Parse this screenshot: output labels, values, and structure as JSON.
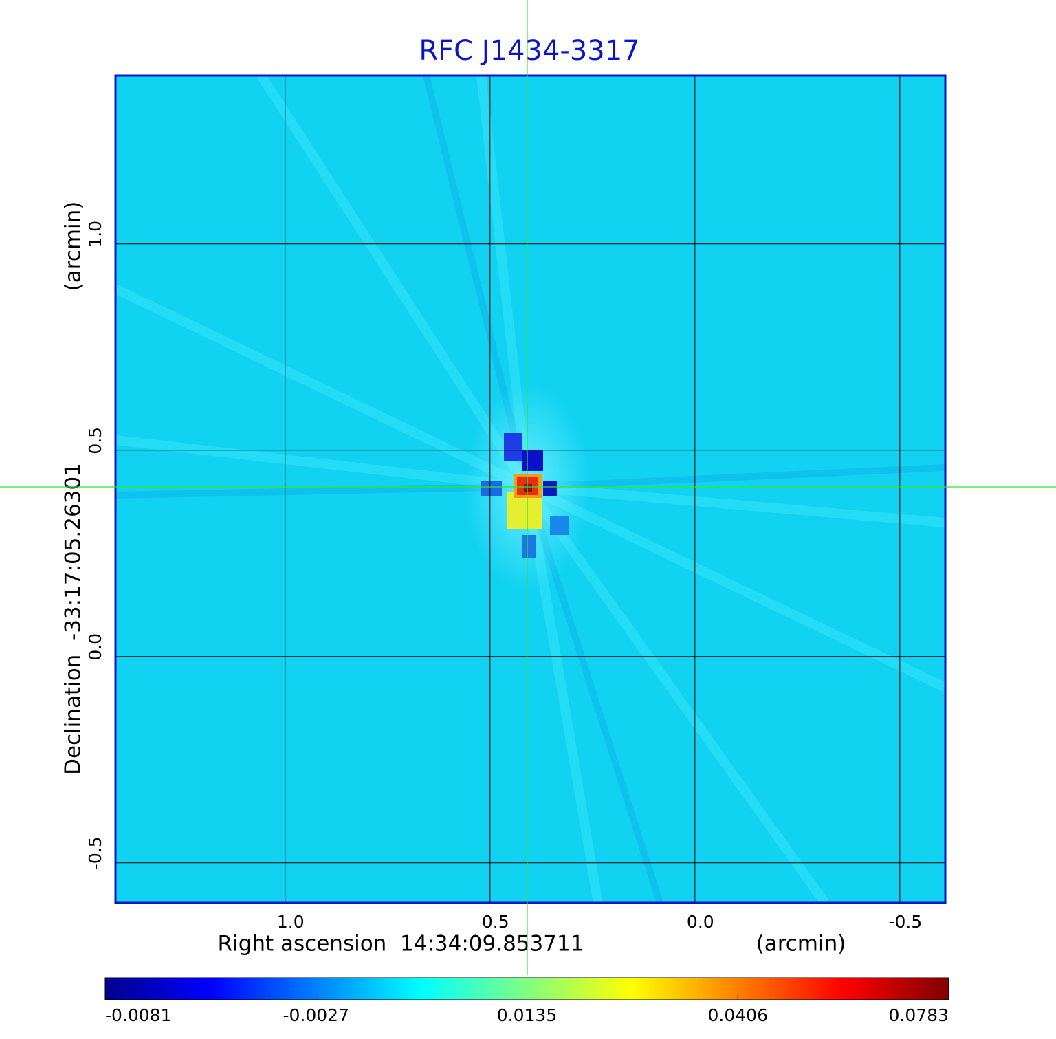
{
  "chart_data": {
    "type": "image",
    "title": "RFC J1434-3317",
    "x_label": "Right ascension  14:34:09.853711",
    "x_unit": "(arcmin)",
    "y_label": "Declination  -33:17:05.26301",
    "y_unit": "(arcmin)",
    "xlim": [
      1.414,
      -0.611
    ],
    "ylim": [
      -0.597,
      1.408
    ],
    "xticks": [
      {
        "value": 1,
        "label": "1.0"
      },
      0.5,
      {
        "value": 0,
        "label": "0.0"
      },
      -0.5
    ],
    "yticks": [
      {
        "value": 1,
        "label": "1.0"
      },
      0.5,
      {
        "value": 0,
        "label": "0.0"
      },
      -0.5
    ],
    "grid": true,
    "frame_color": "#0a14c8",
    "title_color": "#0a14c8",
    "colorbar": {
      "ticks": [
        -0.0081,
        -0.0027,
        0.0135,
        0.0406,
        0.0783
      ],
      "colors": [
        "#00008f",
        "#0000ff",
        "#0080ff",
        "#00ffff",
        "#80ff80",
        "#ffff00",
        "#ff8000",
        "#ff0000",
        "#800000"
      ]
    }
  }
}
